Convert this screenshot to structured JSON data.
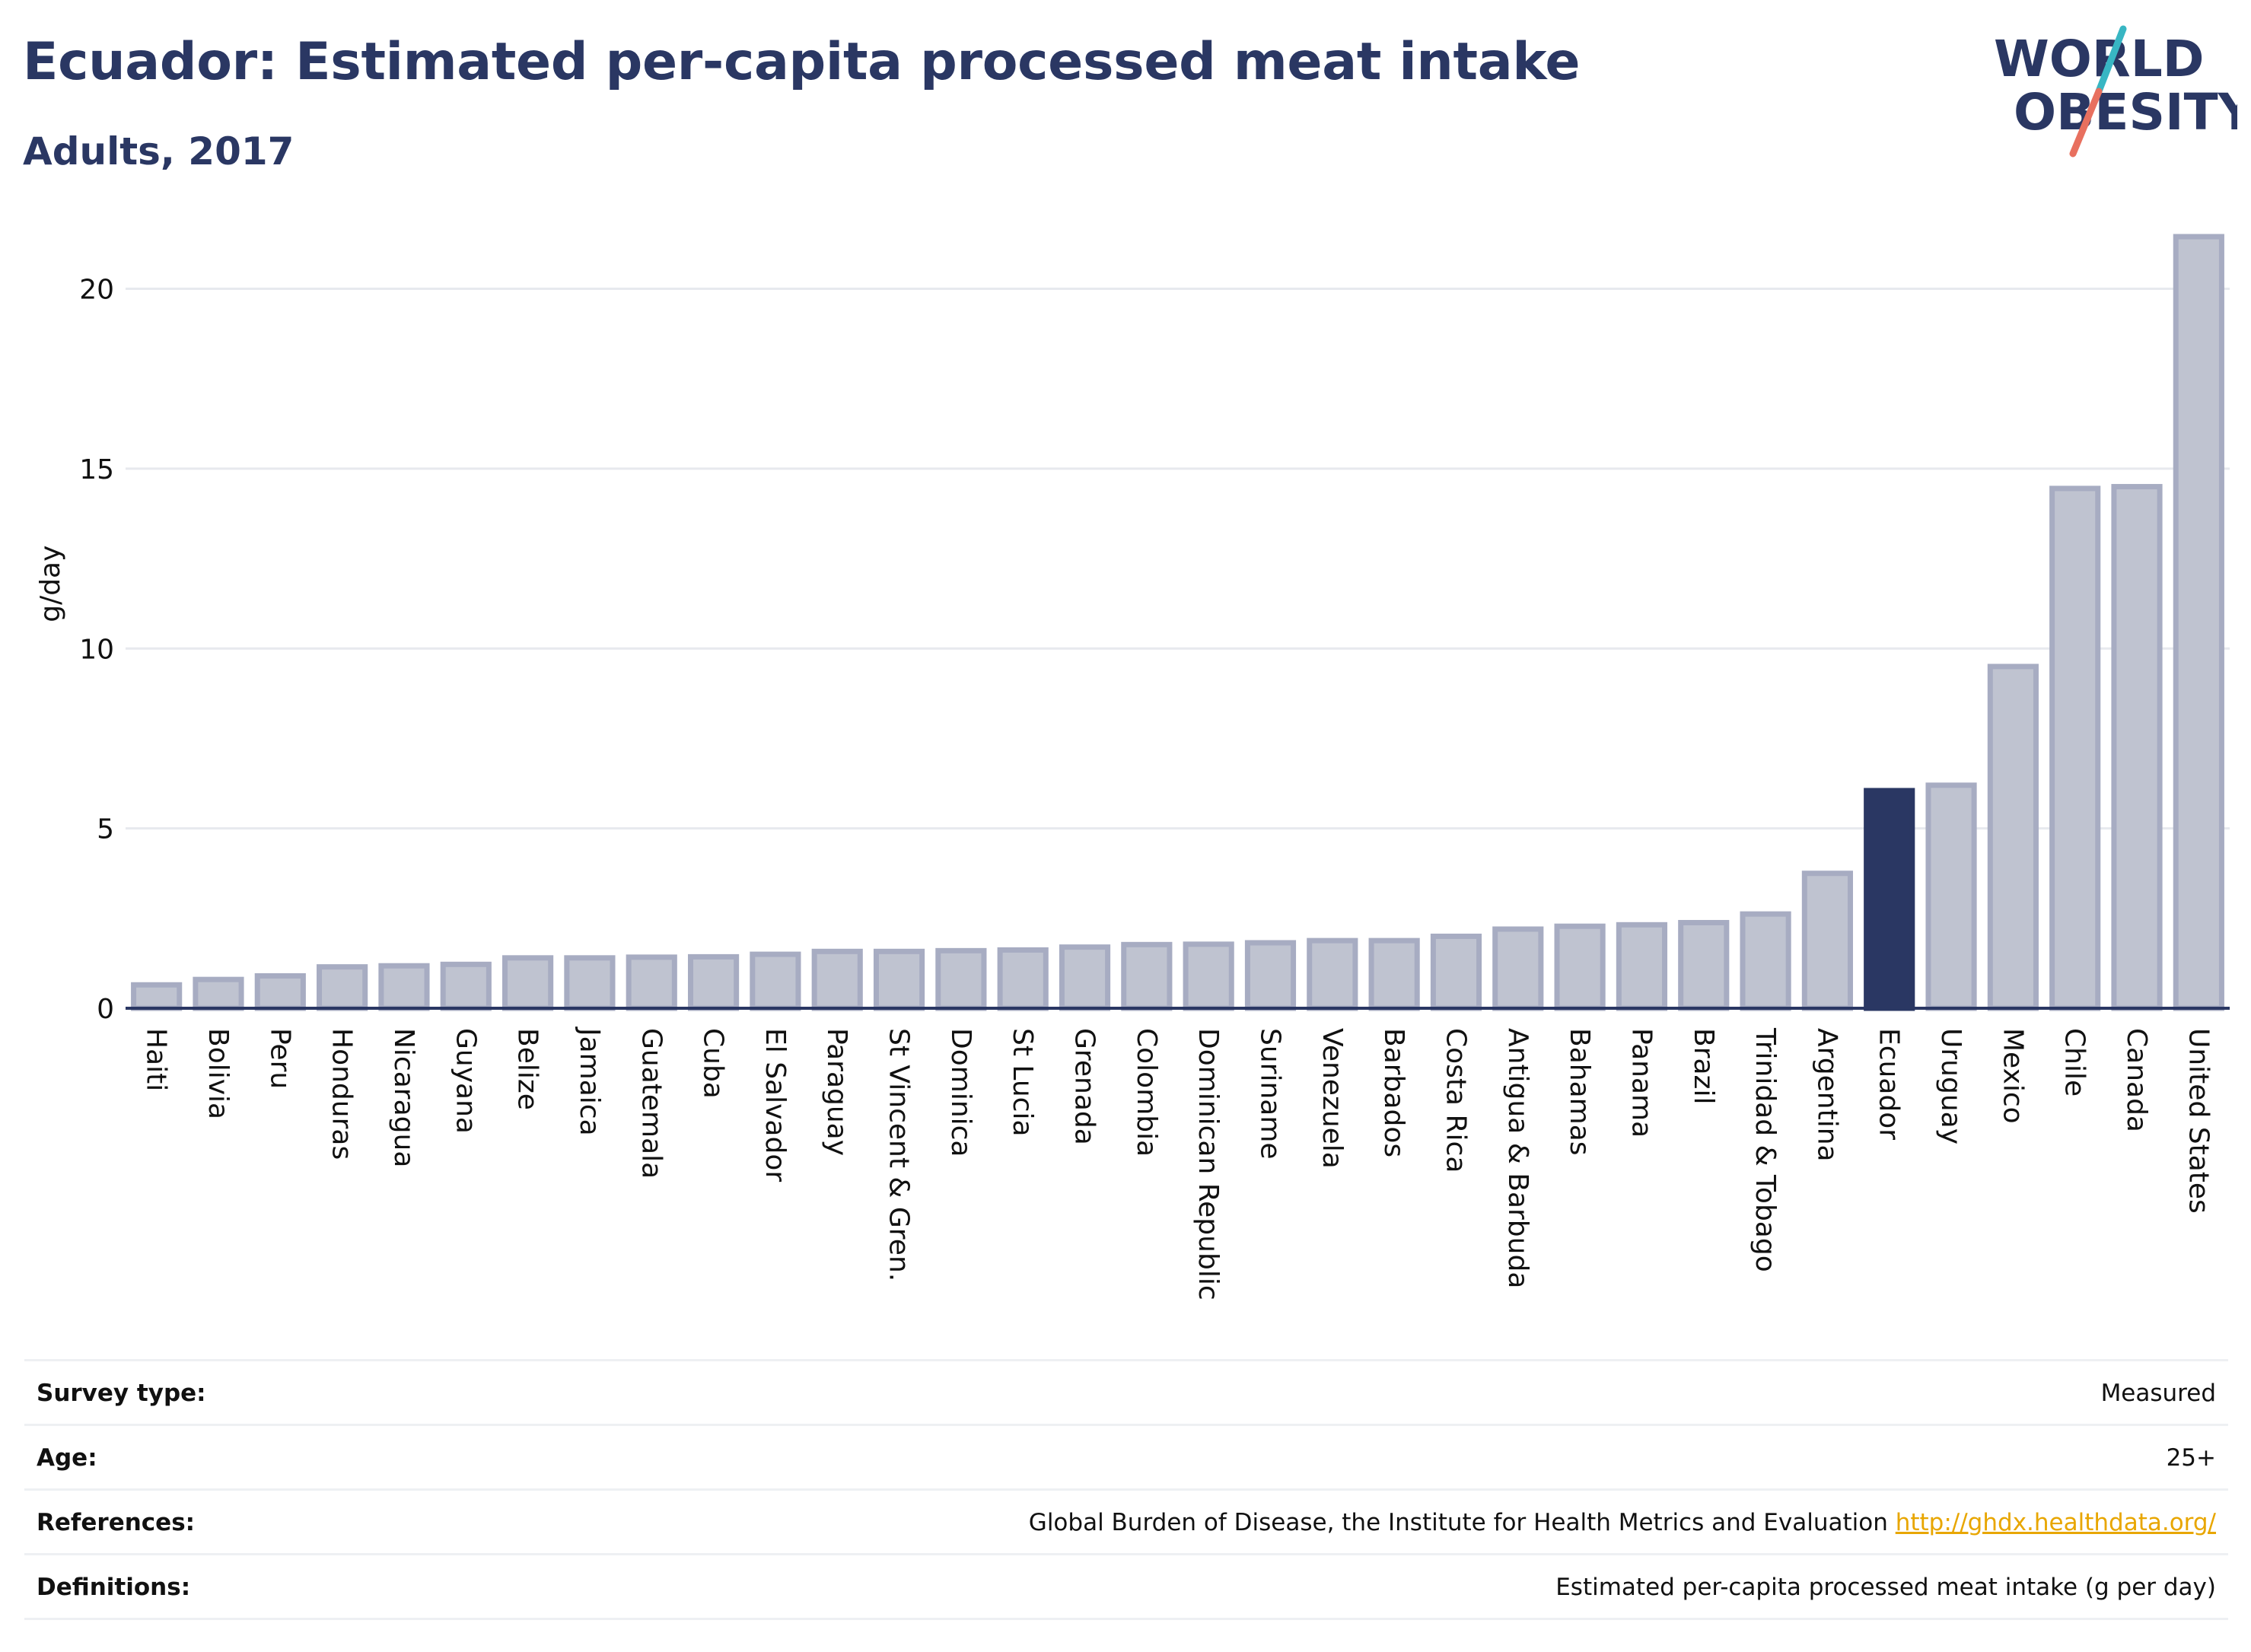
{
  "header": {
    "title": "Ecuador: Estimated per-capita processed meat intake",
    "subtitle": "Adults, 2017"
  },
  "logo": {
    "line1": "WORLD",
    "line2": "OBESITY"
  },
  "colors": {
    "highlight": "#2a3763",
    "bar_fill": "#bfc3d0",
    "bar_stroke": "#a7acc2",
    "grid": "#e7e9ee",
    "axis": "#2a3763",
    "logo_teal": "#38b6c3",
    "logo_coral": "#e8705f",
    "link": "#e8a600"
  },
  "chart_data": {
    "type": "bar",
    "title": "Ecuador: Estimated per-capita processed meat intake",
    "subtitle": "Adults, 2017",
    "ylabel": "g/day",
    "xlabel": "",
    "ylim": [
      0,
      22
    ],
    "yticks": [
      0,
      5,
      10,
      15,
      20
    ],
    "highlight": "Ecuador",
    "grid": true,
    "categories": [
      "Haiti",
      "Bolivia",
      "Peru",
      "Honduras",
      "Nicaragua",
      "Guyana",
      "Belize",
      "Jamaica",
      "Guatemala",
      "Cuba",
      "El Salvador",
      "Paraguay",
      "St Vincent & Gren.",
      "Dominica",
      "St Lucia",
      "Grenada",
      "Colombia",
      "Dominican Republic",
      "Suriname",
      "Venezuela",
      "Barbados",
      "Costa Rica",
      "Antigua & Barbuda",
      "Bahamas",
      "Panama",
      "Brazil",
      "Trinidad & Tobago",
      "Argentina",
      "Ecuador",
      "Uruguay",
      "Mexico",
      "Chile",
      "Canada",
      "United States"
    ],
    "values": [
      0.65,
      0.8,
      0.9,
      1.15,
      1.18,
      1.22,
      1.4,
      1.4,
      1.42,
      1.43,
      1.5,
      1.58,
      1.58,
      1.6,
      1.62,
      1.7,
      1.77,
      1.78,
      1.82,
      1.88,
      1.88,
      2.0,
      2.2,
      2.28,
      2.32,
      2.38,
      2.62,
      3.75,
      6.05,
      6.2,
      9.5,
      14.45,
      14.5,
      21.45
    ]
  },
  "meta": [
    {
      "label": "Survey type:",
      "value": "Measured"
    },
    {
      "label": "Age:",
      "value": "25+"
    },
    {
      "label": "References:",
      "value": "Global Burden of Disease, the Institute for Health Metrics and Evaluation",
      "link": "http://ghdx.healthdata.org/"
    },
    {
      "label": "Definitions:",
      "value": "Estimated per-capita processed meat intake (g per day)"
    }
  ]
}
